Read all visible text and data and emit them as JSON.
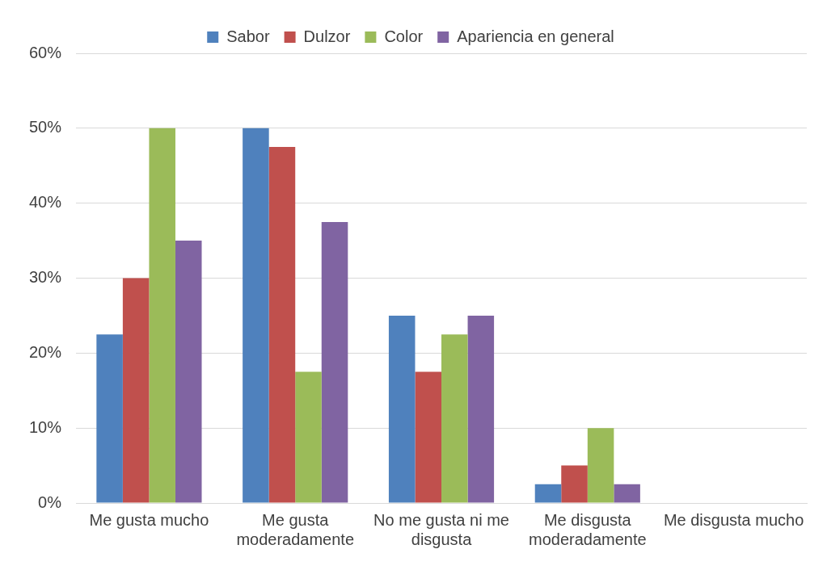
{
  "chart_data": {
    "type": "bar",
    "categories": [
      "Me gusta mucho",
      "Me gusta moderadamente",
      "No me gusta ni me disgusta",
      "Me disgusta moderadamente",
      "Me disgusta mucho"
    ],
    "series": [
      {
        "name": "Sabor",
        "color": "#4f81bd",
        "values": [
          22.5,
          50,
          25,
          2.5,
          0
        ]
      },
      {
        "name": "Dulzor",
        "color": "#c0504d",
        "values": [
          30,
          47.5,
          17.5,
          5,
          0
        ]
      },
      {
        "name": "Color",
        "color": "#9bbb59",
        "values": [
          50,
          17.5,
          22.5,
          10,
          0
        ]
      },
      {
        "name": "Apariencia en general",
        "color": "#8064a2",
        "values": [
          35,
          37.5,
          25,
          2.5,
          0
        ]
      }
    ],
    "ylim": [
      0,
      60
    ],
    "yticks": [
      {
        "value": 0,
        "label": "0%"
      },
      {
        "value": 10,
        "label": "10%"
      },
      {
        "value": 20,
        "label": "20%"
      },
      {
        "value": 30,
        "label": "30%"
      },
      {
        "value": 40,
        "label": "40%"
      },
      {
        "value": 50,
        "label": "50%"
      },
      {
        "value": 60,
        "label": "60%"
      }
    ],
    "grid": "y",
    "legend": "top"
  }
}
